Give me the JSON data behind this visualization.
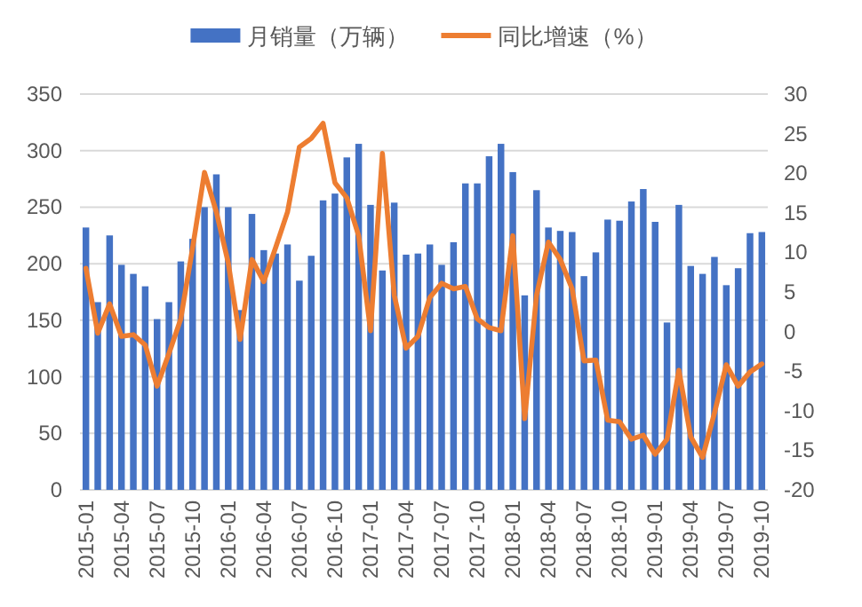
{
  "chart_data": {
    "type": "bar",
    "categories": [
      "2015-01",
      null,
      null,
      "2015-04",
      null,
      null,
      "2015-07",
      null,
      null,
      "2015-10",
      null,
      null,
      "2016-01",
      null,
      null,
      "2016-04",
      null,
      null,
      "2016-07",
      null,
      null,
      "2016-10",
      null,
      null,
      "2017-01",
      null,
      null,
      "2017-04",
      null,
      null,
      "2017-07",
      null,
      null,
      "2017-10",
      null,
      null,
      "2018-01",
      null,
      null,
      "2018-04",
      null,
      null,
      "2018-07",
      null,
      null,
      "2018-10",
      null,
      null,
      "2019-01",
      null,
      null,
      "2019-04",
      null,
      null,
      "2019-07",
      null,
      null,
      "2019-10"
    ],
    "series": [
      {
        "name": "月销量（万辆）",
        "color": "#4472c4",
        "values": [
          232,
          166,
          225,
          199,
          191,
          180,
          151,
          166,
          202,
          222,
          250,
          279,
          250,
          159,
          244,
          212,
          209,
          217,
          185,
          207,
          256,
          262,
          294,
          306,
          252,
          194,
          254,
          208,
          209,
          217,
          199,
          219,
          271,
          271,
          295,
          306,
          281,
          172,
          265,
          232,
          229,
          228,
          189,
          210,
          239,
          238,
          255,
          266,
          237,
          148,
          252,
          198,
          191,
          206,
          181,
          196,
          227,
          228
        ]
      },
      {
        "name": "同比增速（%）",
        "type": "line",
        "axis": "y2",
        "color": "#ed7d31",
        "values": [
          8.0,
          -0.2,
          3.5,
          -0.6,
          -0.4,
          -1.7,
          -6.9,
          -2.8,
          1.6,
          10.6,
          20.1,
          15.1,
          8.7,
          -1.0,
          9.1,
          6.3,
          10.6,
          15.1,
          23.3,
          24.4,
          26.3,
          18.8,
          16.9,
          12.1,
          0.1,
          22.5,
          4.6,
          -2.1,
          -0.6,
          4.3,
          6.1,
          5.4,
          5.7,
          1.6,
          0.5,
          0.1,
          12.1,
          -11.0,
          4.6,
          11.3,
          9.1,
          5.4,
          -3.7,
          -3.6,
          -11.2,
          -11.4,
          -13.6,
          -13.1,
          -15.5,
          -13.6,
          -4.9,
          -13.3,
          -15.9,
          -10.3,
          -4.2,
          -6.9,
          -5.1,
          -4.1
        ]
      }
    ],
    "ylim": [
      0,
      350
    ],
    "yticks": [
      0,
      50,
      100,
      150,
      200,
      250,
      300,
      350
    ],
    "y2lim": [
      -20,
      30
    ],
    "y2ticks": [
      -20,
      -15,
      -10,
      -5,
      0,
      5,
      10,
      15,
      20,
      25,
      30
    ],
    "grid": "y",
    "legend": "top"
  }
}
